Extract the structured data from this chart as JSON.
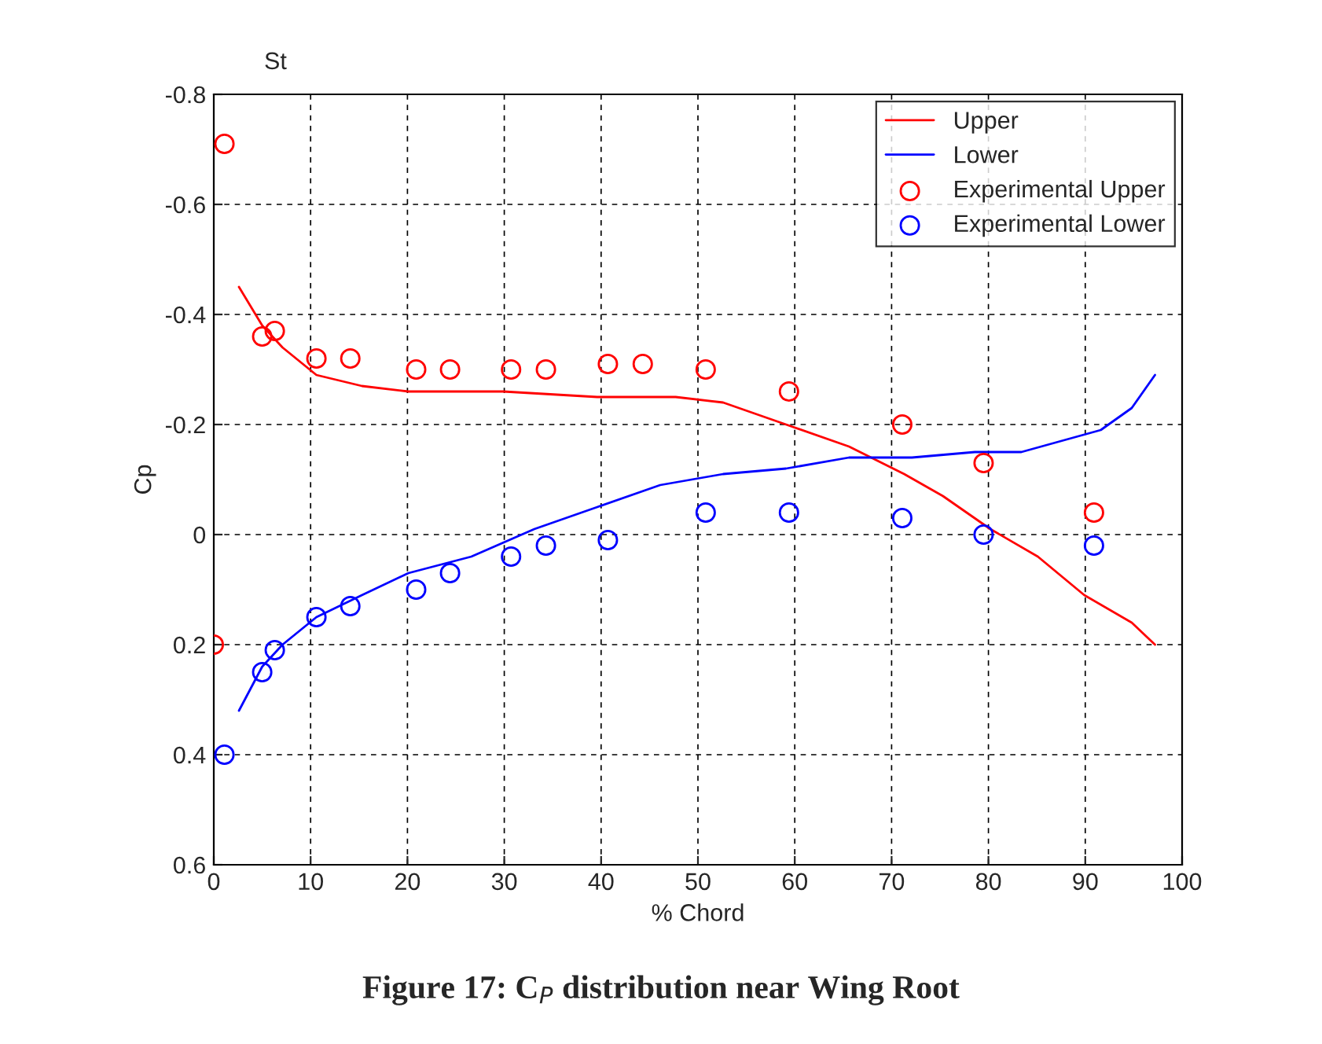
{
  "chart_data": {
    "type": "line",
    "xlabel": "% Chord",
    "ylabel": "Cp",
    "xlim": [
      0,
      100
    ],
    "xticks": [
      0,
      10,
      20,
      30,
      40,
      50,
      60,
      70,
      80,
      90,
      100
    ],
    "ylim": [
      0.6,
      -0.8
    ],
    "yticks": [
      {
        "value": 0.6,
        "label": "0.6"
      },
      {
        "value": 0.4,
        "label": "0.4"
      },
      {
        "value": 0.2,
        "label": "0.2"
      },
      {
        "value": 0,
        "label": "0"
      },
      {
        "value": -0.2,
        "label": "-0.2"
      },
      {
        "value": -0.4,
        "label": "-0.4"
      },
      {
        "value": -0.6,
        "label": "-0.6"
      },
      {
        "value": -0.8,
        "label": "-0.8"
      }
    ],
    "grid": true,
    "legend": "top right",
    "line_style": "solid",
    "annotations": [
      "St",
      "Figure 17: C$_{P}$ distribution near Wing Root"
    ],
    "series": [
      {
        "name": "Upper",
        "color": "#ff0000",
        "x": [
          2.6,
          5,
          7.1,
          10.6,
          15.3,
          20.1,
          29.9,
          39.6,
          47.7,
          52.6,
          59.1,
          65.6,
          71.3,
          75.3,
          80.2,
          85.1,
          89.9,
          94.8,
          97.2
        ],
        "values": [
          -0.45,
          -0.38,
          -0.34,
          -0.29,
          -0.27,
          -0.26,
          -0.26,
          -0.25,
          -0.25,
          -0.24,
          -0.2,
          -0.16,
          -0.11,
          -0.07,
          -0.01,
          0.04,
          0.11,
          0.16,
          0.2
        ]
      },
      {
        "name": "Lower",
        "color": "#0000ff",
        "x": [
          2.6,
          5,
          7.1,
          10.6,
          15.3,
          20.1,
          26.6,
          33.1,
          39.6,
          46.1,
          52.6,
          59.1,
          65.6,
          72.1,
          78.6,
          83.4,
          91.6,
          94.8,
          97.2
        ],
        "values": [
          0.32,
          0.24,
          0.2,
          0.15,
          0.11,
          0.07,
          0.04,
          -0.01,
          -0.05,
          -0.09,
          -0.11,
          -0.12,
          -0.14,
          -0.14,
          -0.15,
          -0.15,
          -0.19,
          -0.23,
          -0.29
        ]
      },
      {
        "name": "Experimental Upper",
        "type": "scatter",
        "marker": "circle",
        "color": "#ff0000",
        "x": [
          0,
          1.1,
          5,
          6.3,
          10.6,
          14.1,
          20.9,
          24.4,
          30.7,
          34.3,
          40.7,
          44.3,
          50.8,
          59.4,
          71.1,
          79.5,
          90.9
        ],
        "values": [
          0.2,
          -0.71,
          -0.36,
          -0.37,
          -0.32,
          -0.32,
          -0.3,
          -0.3,
          -0.3,
          -0.3,
          -0.31,
          -0.31,
          -0.3,
          -0.26,
          -0.2,
          -0.13,
          -0.04
        ]
      },
      {
        "name": "Experimental Lower",
        "type": "scatter",
        "marker": "circle",
        "color": "#0000ff",
        "x": [
          1.1,
          5,
          6.3,
          10.6,
          14.1,
          20.9,
          24.4,
          30.7,
          34.3,
          40.7,
          50.8,
          59.4,
          71.1,
          79.5,
          90.9
        ],
        "values": [
          0.4,
          0.25,
          0.21,
          0.15,
          0.13,
          0.1,
          0.07,
          0.04,
          0.02,
          0.01,
          -0.04,
          -0.04,
          -0.03,
          0.0,
          0.02
        ]
      }
    ]
  }
}
